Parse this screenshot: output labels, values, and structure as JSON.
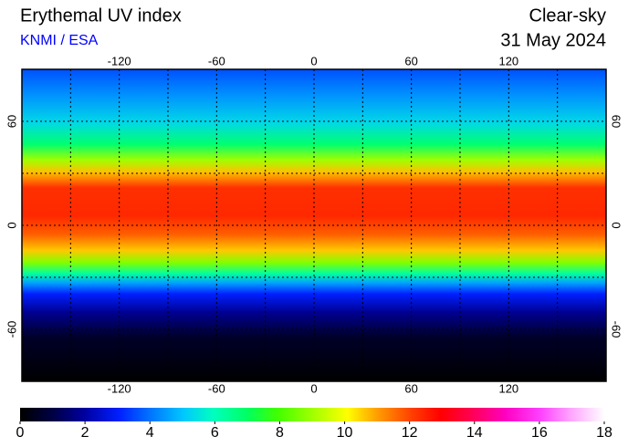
{
  "header": {
    "title": "Erythemal UV index",
    "source": "KNMI / ESA",
    "condition": "Clear-sky",
    "date": "31 May 2024"
  },
  "map": {
    "lon_range": [
      -180,
      180
    ],
    "lat_range": [
      90,
      -90
    ],
    "lon_ticks": [
      -120,
      -60,
      0,
      60,
      120
    ],
    "lat_ticks": [
      60,
      0,
      -60
    ],
    "lon_gridlines": [
      -150,
      -120,
      -90,
      -60,
      -30,
      0,
      30,
      60,
      90,
      120,
      150
    ],
    "lat_gridlines": [
      60,
      30,
      0,
      -30,
      -60
    ]
  },
  "colorbar": {
    "range": [
      0,
      18
    ],
    "ticks": [
      0,
      2,
      4,
      6,
      8,
      10,
      12,
      14,
      16,
      18
    ]
  }
}
